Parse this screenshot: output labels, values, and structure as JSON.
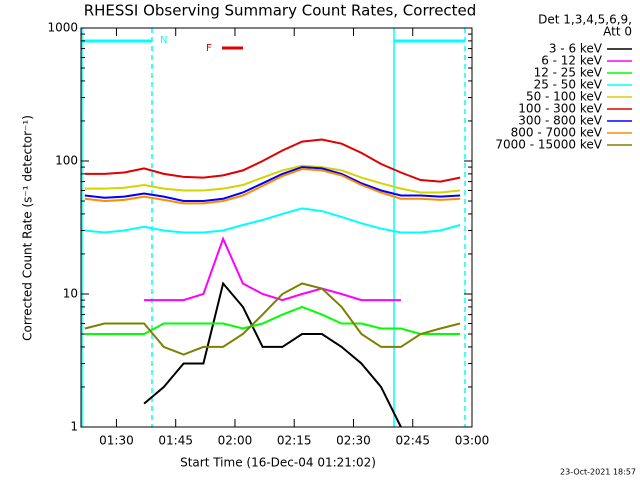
{
  "chart_data": {
    "type": "line",
    "title": "RHESSI Observing Summary Count Rates, Corrected",
    "xlabel": "Start Time (16-Dec-04 01:21:02)",
    "ylabel": "Corrected Count Rate (s⁻¹ detector⁻¹)",
    "legend_title": [
      "Det 1,3,4,5,6,9,",
      "Att 0"
    ],
    "footer": "23-Oct-2021 18:57",
    "annotations": [
      "N",
      "F"
    ],
    "log_y": true,
    "xlim": [
      81.03,
      180
    ],
    "xticks": [
      {
        "value": 90,
        "label": "01:30"
      },
      {
        "value": 105,
        "label": "01:45"
      },
      {
        "value": 120,
        "label": "02:00"
      },
      {
        "value": 135,
        "label": "02:15"
      },
      {
        "value": 150,
        "label": "02:30"
      },
      {
        "value": 165,
        "label": "02:45"
      },
      {
        "value": 180,
        "label": "03:00"
      }
    ],
    "ylim": [
      1,
      1000
    ],
    "yticks": [
      1,
      10,
      100,
      1000
    ],
    "x": [
      82,
      87,
      92,
      97,
      102,
      107,
      112,
      117,
      122,
      127,
      132,
      137,
      142,
      147,
      152,
      157,
      162,
      167,
      172,
      177
    ],
    "series": [
      {
        "name": "3 - 6 keV",
        "color": "#000000",
        "values": [
          null,
          null,
          null,
          1.5,
          2,
          3,
          3,
          12,
          8,
          4,
          4,
          5,
          5,
          4,
          3,
          2,
          1,
          null,
          null,
          null
        ]
      },
      {
        "name": "6 - 12 keV",
        "color": "#ff00ff",
        "values": [
          null,
          null,
          null,
          9,
          9,
          9,
          10,
          26,
          12,
          10,
          9,
          10,
          11,
          10,
          9,
          9,
          9,
          null,
          null,
          null
        ]
      },
      {
        "name": "12 - 25 keV",
        "color": "#00ff00",
        "values": [
          5,
          5,
          5,
          5,
          6,
          6,
          6,
          6,
          5.5,
          6,
          7,
          8,
          7,
          6,
          6,
          5.5,
          5.5,
          5,
          5,
          5
        ]
      },
      {
        "name": "25 - 50 keV",
        "color": "#00ffff",
        "values": [
          30,
          29,
          30,
          32,
          30,
          29,
          29,
          30,
          33,
          36,
          40,
          44,
          42,
          38,
          34,
          31,
          29,
          29,
          30,
          33
        ]
      },
      {
        "name": "50 - 100 keV",
        "color": "#d4d400",
        "values": [
          62,
          62,
          63,
          66,
          62,
          60,
          60,
          62,
          66,
          75,
          85,
          92,
          90,
          85,
          75,
          68,
          62,
          58,
          58,
          60
        ]
      },
      {
        "name": "100 - 300 keV",
        "color": "#e00000",
        "values": [
          80,
          80,
          82,
          88,
          80,
          76,
          75,
          78,
          85,
          100,
          120,
          140,
          145,
          135,
          115,
          95,
          82,
          72,
          70,
          75
        ]
      },
      {
        "name": "300 - 800 keV",
        "color": "#0000ff",
        "values": [
          55,
          53,
          54,
          57,
          54,
          50,
          50,
          52,
          58,
          68,
          80,
          90,
          88,
          80,
          68,
          60,
          55,
          55,
          54,
          55
        ]
      },
      {
        "name": "800 - 7000 keV",
        "color": "#ff8c00",
        "values": [
          52,
          50,
          51,
          54,
          51,
          48,
          48,
          50,
          55,
          65,
          77,
          87,
          85,
          78,
          66,
          58,
          52,
          52,
          51,
          52
        ]
      },
      {
        "name": "7000 - 15000 keV",
        "color": "#808000",
        "values": [
          5.5,
          6,
          6,
          6,
          4,
          3.5,
          4,
          4,
          5,
          7,
          10,
          12,
          11,
          8,
          5,
          4,
          4,
          5,
          5.5,
          6
        ]
      }
    ]
  }
}
